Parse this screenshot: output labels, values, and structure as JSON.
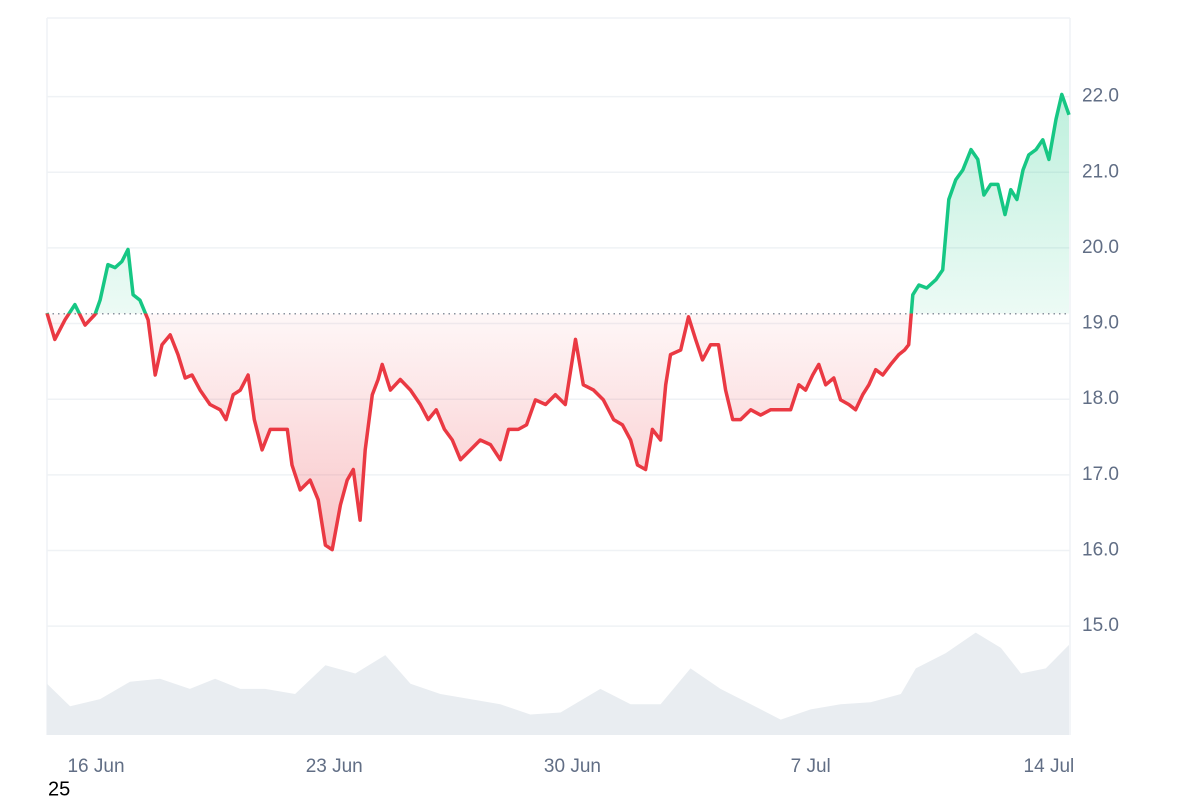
{
  "chart_data": {
    "type": "line",
    "x": [
      14.56,
      14.79,
      15.09,
      15.38,
      15.68,
      15.97,
      16.12,
      16.35,
      16.56,
      16.76,
      16.94,
      17.09,
      17.29,
      17.53,
      17.74,
      17.94,
      18.18,
      18.41,
      18.62,
      18.82,
      19.06,
      19.35,
      19.65,
      19.82,
      20.03,
      20.24,
      20.47,
      20.65,
      20.88,
      21.12,
      21.41,
      21.62,
      21.76,
      22.0,
      22.29,
      22.53,
      22.74,
      22.94,
      23.18,
      23.38,
      23.56,
      23.76,
      23.91,
      24.12,
      24.29,
      24.41,
      24.65,
      24.94,
      25.24,
      25.53,
      25.76,
      26.0,
      26.24,
      26.47,
      26.71,
      27.0,
      27.29,
      27.59,
      27.88,
      28.12,
      28.41,
      28.65,
      28.91,
      29.21,
      29.5,
      29.79,
      30.09,
      30.32,
      30.62,
      30.91,
      31.21,
      31.47,
      31.71,
      31.91,
      32.15,
      32.35,
      32.59,
      32.74,
      32.88,
      33.18,
      33.41,
      33.62,
      33.82,
      34.06,
      34.29,
      34.5,
      34.71,
      34.94,
      35.24,
      35.53,
      35.82,
      36.12,
      36.41,
      36.65,
      36.85,
      37.06,
      37.24,
      37.44,
      37.68,
      37.88,
      38.12,
      38.32,
      38.53,
      38.71,
      38.91,
      39.12,
      39.35,
      39.59,
      39.76,
      39.88,
      40.0,
      40.18,
      40.41,
      40.68,
      40.88,
      41.06,
      41.26,
      41.47,
      41.71,
      41.91,
      42.09,
      42.29,
      42.5,
      42.71,
      42.88,
      43.06,
      43.24,
      43.41,
      43.62,
      43.82,
      44.0,
      44.21,
      44.38,
      44.59
    ],
    "values": [
      19.14,
      18.79,
      19.05,
      19.25,
      18.98,
      19.12,
      19.31,
      19.78,
      19.74,
      19.82,
      19.98,
      19.38,
      19.31,
      19.05,
      18.32,
      18.72,
      18.85,
      18.59,
      18.28,
      18.32,
      18.12,
      17.93,
      17.86,
      17.73,
      18.06,
      18.12,
      18.32,
      17.73,
      17.33,
      17.6,
      17.6,
      17.6,
      17.13,
      16.8,
      16.93,
      16.67,
      16.07,
      16.01,
      16.6,
      16.93,
      17.07,
      16.4,
      17.33,
      18.06,
      18.26,
      18.46,
      18.12,
      18.26,
      18.12,
      17.93,
      17.73,
      17.86,
      17.6,
      17.46,
      17.2,
      17.33,
      17.46,
      17.4,
      17.2,
      17.6,
      17.6,
      17.66,
      17.99,
      17.93,
      18.06,
      17.93,
      18.79,
      18.19,
      18.12,
      17.99,
      17.73,
      17.66,
      17.46,
      17.13,
      17.07,
      17.6,
      17.46,
      18.19,
      18.59,
      18.65,
      19.09,
      18.79,
      18.52,
      18.72,
      18.72,
      18.12,
      17.73,
      17.73,
      17.86,
      17.79,
      17.86,
      17.86,
      17.86,
      18.19,
      18.12,
      18.32,
      18.46,
      18.19,
      18.28,
      17.99,
      17.93,
      17.86,
      18.06,
      18.19,
      18.39,
      18.32,
      18.46,
      18.59,
      18.65,
      18.72,
      19.38,
      19.51,
      19.47,
      19.58,
      19.71,
      20.64,
      20.9,
      21.03,
      21.3,
      21.17,
      20.7,
      20.84,
      20.84,
      20.44,
      20.77,
      20.64,
      21.03,
      21.23,
      21.3,
      21.43,
      21.17,
      21.7,
      22.03,
      21.76
    ],
    "baseline": 19.13,
    "up_color": "#16c784",
    "down_color": "#ea3943",
    "volume": {
      "axis": "y2",
      "color": "#e9edf1",
      "x": [
        14.56,
        15.24,
        16.12,
        17.0,
        17.88,
        18.76,
        19.5,
        20.24,
        20.97,
        21.85,
        22.74,
        23.62,
        24.5,
        25.24,
        26.12,
        27.0,
        27.88,
        28.76,
        29.65,
        30.82,
        31.71,
        32.59,
        33.47,
        34.35,
        35.24,
        36.12,
        37.0,
        37.88,
        38.76,
        39.65,
        40.09,
        40.97,
        41.85,
        42.59,
        43.18,
        43.91,
        44.59
      ],
      "values": [
        50,
        28,
        35,
        52,
        55,
        45,
        55,
        45,
        45,
        40,
        68,
        60,
        78,
        50,
        40,
        35,
        30,
        20,
        22,
        45,
        30,
        30,
        65,
        45,
        30,
        15,
        25,
        30,
        32,
        40,
        65,
        80,
        100,
        85,
        60,
        65,
        88
      ]
    },
    "xlim": [
      14.56,
      44.62
    ],
    "xticks": [
      {
        "value": 16,
        "label": "16 Jun"
      },
      {
        "value": 23,
        "label": "23 Jun"
      },
      {
        "value": 30,
        "label": "30 Jun"
      },
      {
        "value": 37,
        "label": "7 Jul"
      },
      {
        "value": 44,
        "label": "14 Jul"
      }
    ],
    "ylim": [
      13.56,
      23.04
    ],
    "yticks": [
      {
        "value": 15,
        "label": "15.0"
      },
      {
        "value": 16,
        "label": "16.0"
      },
      {
        "value": 17,
        "label": "17.0"
      },
      {
        "value": 18,
        "label": "18.0"
      },
      {
        "value": 19,
        "label": "19.0"
      },
      {
        "value": 20,
        "label": "20.0"
      },
      {
        "value": 21,
        "label": "21.0"
      },
      {
        "value": 22,
        "label": "22.0"
      }
    ],
    "y2lim": [
      0,
      700
    ],
    "grid": true,
    "corner_label": "25"
  }
}
